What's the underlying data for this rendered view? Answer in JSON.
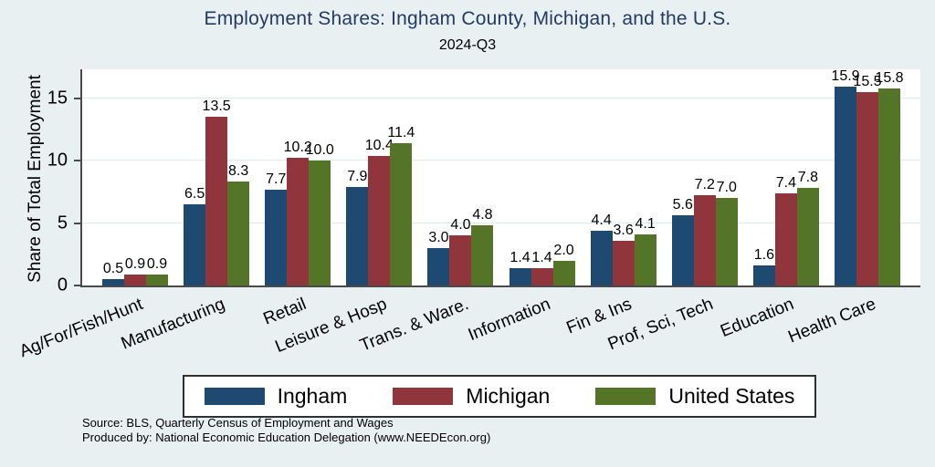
{
  "header": {
    "title": "Employment Shares: Ingham County, Michigan, and the U.S.",
    "subtitle": "2024-Q3"
  },
  "footer": {
    "source_line1": "Source: BLS, Quarterly Census of Employment and Wages",
    "source_line2": "Produced by: National Economic Education Delegation (www.NEEDEcon.org)"
  },
  "colors": {
    "background": "#e9f0f2",
    "plot_background": "#ffffff",
    "title": "#243a66",
    "axis": "#4a4a4a",
    "gridline": "#dfe9ed",
    "ingham": "#1e4a72",
    "michigan": "#90353b",
    "united_states": "#547428"
  },
  "chart_data": {
    "type": "bar",
    "title": "Employment Shares: Ingham County, Michigan, and the U.S.",
    "subtitle": "2024-Q3",
    "xlabel": "",
    "ylabel": "Share of Total Employment",
    "ylim": [
      0,
      17.3
    ],
    "yticks": [
      0,
      5,
      10,
      15
    ],
    "grid": true,
    "legend_position": "bottom",
    "value_label_format": "0.1f",
    "categories": [
      "Ag/For/Fish/Hunt",
      "Manufacturing",
      "Retail",
      "Leisure & Hosp",
      "Trans. & Ware.",
      "Information",
      "Fin & Ins",
      "Prof, Sci, Tech",
      "Education",
      "Health Care"
    ],
    "series": [
      {
        "name": "Ingham",
        "color": "#1e4a72",
        "values": [
          0.5,
          6.5,
          7.7,
          7.9,
          3.0,
          1.4,
          4.4,
          5.6,
          1.6,
          15.9
        ]
      },
      {
        "name": "Michigan",
        "color": "#90353b",
        "values": [
          0.9,
          13.5,
          10.2,
          10.4,
          4.0,
          1.4,
          3.6,
          7.2,
          7.4,
          15.5
        ]
      },
      {
        "name": "United States",
        "color": "#547428",
        "values": [
          0.9,
          8.3,
          10.0,
          11.4,
          4.8,
          2.0,
          4.1,
          7.0,
          7.8,
          15.8
        ]
      }
    ]
  }
}
